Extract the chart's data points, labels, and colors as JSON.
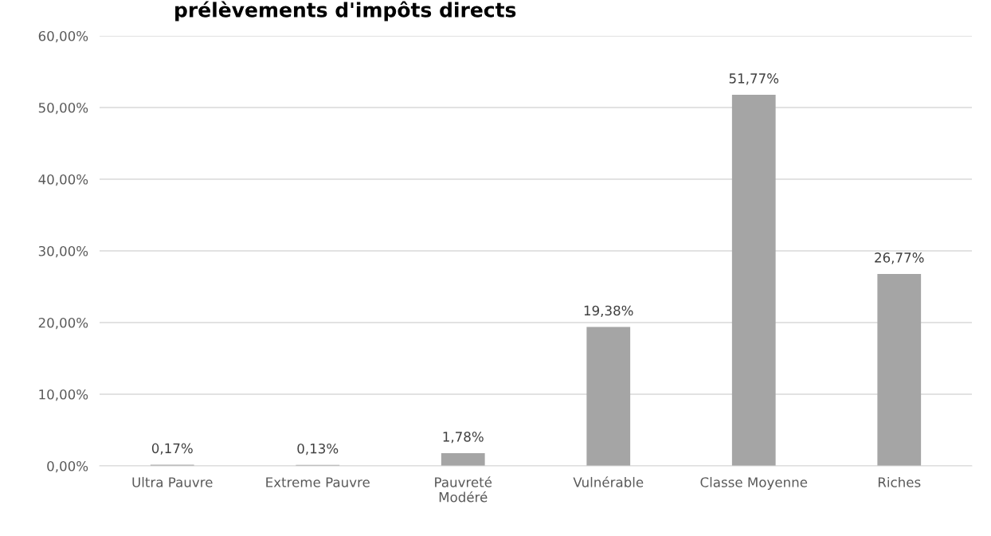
{
  "chart_data": {
    "type": "bar",
    "title": "prélèvements d'impôts directs",
    "categories": [
      "Ultra Pauvre",
      "Extreme Pauvre",
      "Pauvreté\nModéré",
      "Vulnérable",
      "Classe Moyenne",
      "Riches"
    ],
    "values": [
      0.17,
      0.13,
      1.78,
      19.38,
      51.77,
      26.77
    ],
    "value_labels": [
      "0,17%",
      "0,13%",
      "1,78%",
      "19,38%",
      "51,77%",
      "26,77%"
    ],
    "color": "#a5a5a5",
    "ylim": [
      0,
      60
    ],
    "yticks": [
      {
        "value": 0,
        "label": "0,00%"
      },
      {
        "value": 10,
        "label": "10,00%"
      },
      {
        "value": 20,
        "label": "20,00%"
      },
      {
        "value": 30,
        "label": "30,00%"
      },
      {
        "value": 40,
        "label": "40,00%"
      },
      {
        "value": 50,
        "label": "50,00%"
      },
      {
        "value": 60,
        "label": "60,00%"
      }
    ],
    "grid": "y"
  }
}
